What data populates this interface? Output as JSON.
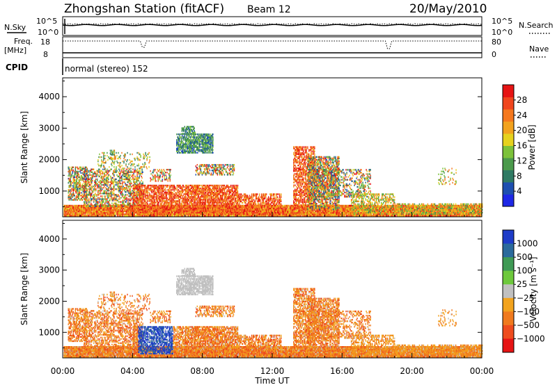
{
  "header": {
    "station": "Zhongshan Station (fitACF)",
    "beam": "Beam 12",
    "date": "20/May/2010"
  },
  "strips": {
    "nsky_label": "N.Sky",
    "nsky_ticks": [
      "10^5",
      "10^0"
    ],
    "nsearch_label": "N.Search",
    "nsearch_ticks": [
      "10^5",
      "10^0"
    ],
    "freq_label_1": "Freq.",
    "freq_label_2": "[MHz]",
    "freq_ticks": [
      "18",
      "8"
    ],
    "nave_label": "Nave",
    "nave_ticks": [
      "80",
      "0"
    ],
    "cpid_label": "CPID",
    "cpid_value": "normal (stereo) 152"
  },
  "chart_data": [
    {
      "type": "heatmap",
      "name": "power",
      "ylabel": "Slant Range [km]",
      "yticks": [
        "1000",
        "2000",
        "3000",
        "4000"
      ],
      "ylim": [
        180,
        4600
      ],
      "xlim": [
        0,
        24
      ],
      "colorbar_label": "Power [dB]",
      "colorbar_ticks": [
        "4",
        "8",
        "12",
        "16",
        "20",
        "24",
        "28"
      ],
      "colors": [
        "#1e28e6",
        "#1e4fb0",
        "#2f7a63",
        "#4b9a4c",
        "#7cc23a",
        "#e6d21e",
        "#f2a21e",
        "#f5781e",
        "#f0461e",
        "#e61414"
      ]
    },
    {
      "type": "heatmap",
      "name": "velocity",
      "ylabel": "Slant Range [km]",
      "yticks": [
        "1000",
        "2000",
        "3000",
        "4000"
      ],
      "ylim": [
        180,
        4600
      ],
      "xlim": [
        0,
        24
      ],
      "xticks": [
        "00:00",
        "04:00",
        "08:00",
        "12:00",
        "16:00",
        "20:00",
        "00:00"
      ],
      "xlabel": "Time UT",
      "colorbar_label": "Velocity [m s⁻¹]",
      "colorbar_ticks": [
        "1000",
        "500",
        "100",
        "25",
        "−25",
        "−100",
        "−500",
        "−1000"
      ],
      "colors": [
        "#1e3cc8",
        "#2b6a9c",
        "#3f9a55",
        "#6dc83c",
        "#c0c0c0",
        "#f2a31e",
        "#f07a1e",
        "#ee4c1e",
        "#e61414"
      ]
    }
  ]
}
